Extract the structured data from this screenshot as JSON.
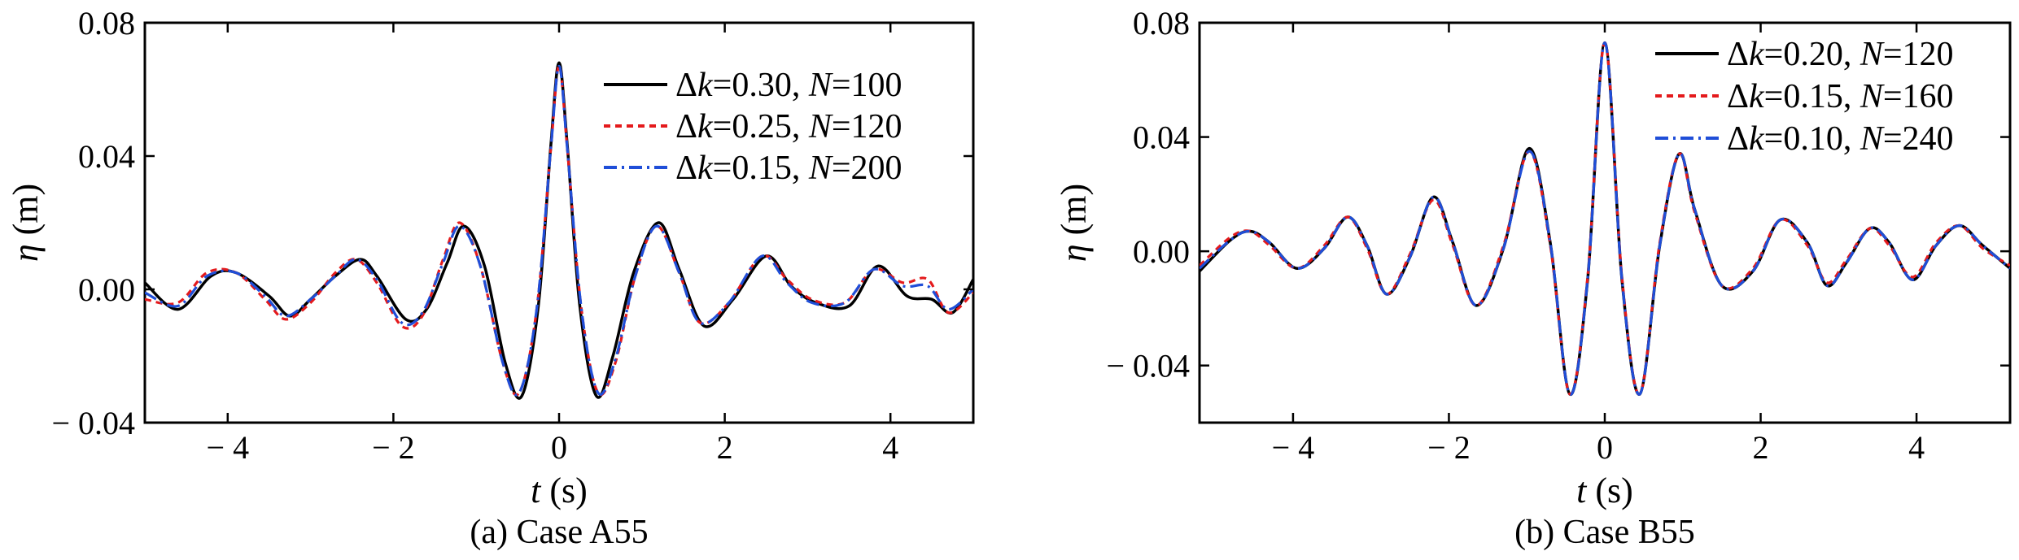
{
  "chart_data": [
    {
      "type": "line",
      "caption": "(a) Case A55",
      "xlabel_var": "t",
      "xlabel_unit": " (s)",
      "ylabel_var": "η",
      "ylabel_unit": " (m)",
      "xlim": [
        -5,
        5
      ],
      "ylim": [
        -0.04,
        0.08
      ],
      "xticks": [
        -4,
        -2,
        0,
        2,
        4
      ],
      "xtick_labels": [
        "− 4",
        "− 2",
        "0",
        "2",
        "4"
      ],
      "yticks": [
        -0.04,
        0.0,
        0.04,
        0.08
      ],
      "ytick_labels": [
        "− 0.04",
        "0.00",
        "0.04",
        "0.08"
      ],
      "grid": false,
      "legend_position": "top-right",
      "series": [
        {
          "name_parts": [
            "Δ",
            "k",
            "=0.30, ",
            "N",
            "=100"
          ],
          "color": "#000000",
          "dash": "solid",
          "x": [
            -5.0,
            -4.6,
            -4.2,
            -3.9,
            -3.5,
            -3.25,
            -3.0,
            -2.7,
            -2.4,
            -2.2,
            -1.85,
            -1.6,
            -1.35,
            -1.15,
            -0.9,
            -0.65,
            -0.45,
            -0.25,
            -0.1,
            0.0,
            0.1,
            0.25,
            0.45,
            0.65,
            0.9,
            1.2,
            1.45,
            1.75,
            2.1,
            2.5,
            2.8,
            3.1,
            3.5,
            3.85,
            4.2,
            4.5,
            4.75,
            5.0
          ],
          "y": [
            0.002,
            -0.006,
            0.004,
            0.005,
            -0.002,
            -0.008,
            -0.003,
            0.004,
            0.009,
            0.004,
            -0.009,
            -0.006,
            0.008,
            0.019,
            0.007,
            -0.022,
            -0.032,
            -0.005,
            0.043,
            0.068,
            0.043,
            -0.005,
            -0.032,
            -0.02,
            0.005,
            0.02,
            0.006,
            -0.011,
            -0.003,
            0.01,
            0.001,
            -0.004,
            -0.005,
            0.007,
            -0.002,
            -0.003,
            -0.007,
            0.003
          ]
        },
        {
          "name_parts": [
            "Δ",
            "k",
            "=0.25, ",
            "N",
            "=120"
          ],
          "color": "#e41a1c",
          "dash": "8,6",
          "x": [
            -5.0,
            -4.6,
            -4.25,
            -3.9,
            -3.55,
            -3.3,
            -3.0,
            -2.7,
            -2.45,
            -2.2,
            -1.9,
            -1.65,
            -1.4,
            -1.2,
            -0.95,
            -0.68,
            -0.48,
            -0.27,
            -0.1,
            0.0,
            0.1,
            0.27,
            0.47,
            0.68,
            0.92,
            1.18,
            1.45,
            1.7,
            2.05,
            2.45,
            2.75,
            3.05,
            3.45,
            3.8,
            4.15,
            4.45,
            4.7,
            5.0
          ],
          "y": [
            -0.003,
            -0.004,
            0.005,
            0.005,
            -0.003,
            -0.009,
            -0.004,
            0.005,
            0.009,
            0.002,
            -0.011,
            -0.008,
            0.009,
            0.02,
            0.007,
            -0.022,
            -0.031,
            -0.006,
            0.042,
            0.067,
            0.042,
            -0.006,
            -0.031,
            -0.022,
            0.004,
            0.019,
            0.005,
            -0.01,
            -0.004,
            0.01,
            0.003,
            -0.003,
            -0.004,
            0.006,
            0.002,
            0.003,
            -0.007,
            -0.001
          ]
        },
        {
          "name_parts": [
            "Δ",
            "k",
            "=0.15, ",
            "N",
            "=200"
          ],
          "color": "#1f4ed8",
          "dash": "16,6,3,6",
          "x": [
            -5.0,
            -4.6,
            -4.25,
            -3.9,
            -3.55,
            -3.3,
            -3.0,
            -2.7,
            -2.45,
            -2.2,
            -1.9,
            -1.65,
            -1.4,
            -1.2,
            -0.95,
            -0.68,
            -0.48,
            -0.27,
            -0.1,
            0.0,
            0.1,
            0.27,
            0.47,
            0.68,
            0.92,
            1.18,
            1.45,
            1.7,
            2.05,
            2.45,
            2.75,
            3.05,
            3.45,
            3.8,
            4.15,
            4.45,
            4.7,
            5.0
          ],
          "y": [
            -0.001,
            -0.005,
            0.004,
            0.005,
            -0.002,
            -0.008,
            -0.003,
            0.004,
            0.009,
            0.003,
            -0.01,
            -0.007,
            0.008,
            0.019,
            0.007,
            -0.022,
            -0.031,
            -0.006,
            0.042,
            0.067,
            0.042,
            -0.006,
            -0.031,
            -0.021,
            0.004,
            0.019,
            0.005,
            -0.01,
            -0.004,
            0.01,
            0.002,
            -0.004,
            -0.004,
            0.006,
            0.001,
            0.001,
            -0.006,
            0.0
          ]
        }
      ]
    },
    {
      "type": "line",
      "caption": "(b) Case B55",
      "xlabel_var": "t",
      "xlabel_unit": " (s)",
      "ylabel_var": "η",
      "ylabel_unit": " (m)",
      "xlim": [
        -5.2,
        5.2
      ],
      "ylim": [
        -0.06,
        0.08
      ],
      "xticks": [
        -4,
        -2,
        0,
        2,
        4
      ],
      "xtick_labels": [
        "− 4",
        "− 2",
        "0",
        "2",
        "4"
      ],
      "yticks": [
        -0.04,
        0.0,
        0.04,
        0.08
      ],
      "ytick_labels": [
        "− 0.04",
        "0.00",
        "0.04",
        "0.08"
      ],
      "grid": false,
      "legend_position": "top-right",
      "series": [
        {
          "name_parts": [
            "Δ",
            "k",
            "=0.20, ",
            "N",
            "=120"
          ],
          "color": "#000000",
          "dash": "solid",
          "x": [
            -5.2,
            -4.8,
            -4.55,
            -4.3,
            -3.95,
            -3.6,
            -3.3,
            -3.05,
            -2.8,
            -2.5,
            -2.2,
            -1.95,
            -1.65,
            -1.3,
            -0.97,
            -0.7,
            -0.45,
            -0.22,
            0.0,
            0.22,
            0.45,
            0.7,
            0.95,
            1.15,
            1.5,
            1.9,
            2.25,
            2.6,
            2.85,
            3.1,
            3.4,
            3.65,
            3.95,
            4.25,
            4.55,
            4.85,
            5.2
          ],
          "y": [
            -0.007,
            0.004,
            0.007,
            0.003,
            -0.006,
            0.001,
            0.012,
            0.002,
            -0.015,
            -0.002,
            0.019,
            0.003,
            -0.019,
            0.001,
            0.036,
            0.003,
            -0.05,
            -0.01,
            0.073,
            -0.01,
            -0.05,
            0.001,
            0.034,
            0.015,
            -0.012,
            -0.007,
            0.011,
            0.003,
            -0.012,
            -0.004,
            0.008,
            0.003,
            -0.01,
            0.002,
            0.009,
            0.002,
            -0.006
          ]
        },
        {
          "name_parts": [
            "Δ",
            "k",
            "=0.15, ",
            "N",
            "=160"
          ],
          "color": "#e41a1c",
          "dash": "8,6",
          "x": [
            -5.2,
            -4.8,
            -4.55,
            -4.3,
            -3.95,
            -3.6,
            -3.3,
            -3.05,
            -2.8,
            -2.5,
            -2.2,
            -1.95,
            -1.65,
            -1.3,
            -0.97,
            -0.7,
            -0.45,
            -0.22,
            0.0,
            0.22,
            0.45,
            0.7,
            0.95,
            1.15,
            1.5,
            1.9,
            2.25,
            2.6,
            2.85,
            3.1,
            3.4,
            3.65,
            3.95,
            4.25,
            4.55,
            4.85,
            5.2
          ],
          "y": [
            -0.005,
            0.005,
            0.007,
            0.002,
            -0.006,
            0.002,
            0.012,
            0.001,
            -0.015,
            -0.001,
            0.018,
            0.002,
            -0.019,
            0.002,
            0.035,
            0.002,
            -0.05,
            -0.009,
            0.073,
            -0.009,
            -0.05,
            0.002,
            0.034,
            0.014,
            -0.012,
            -0.006,
            0.011,
            0.002,
            -0.011,
            -0.003,
            0.008,
            0.002,
            -0.009,
            0.003,
            0.009,
            0.001,
            -0.005
          ]
        },
        {
          "name_parts": [
            "Δ",
            "k",
            "=0.10, ",
            "N",
            "=240"
          ],
          "color": "#1f4ed8",
          "dash": "16,6,3,6",
          "x": [
            -5.2,
            -4.8,
            -4.55,
            -4.3,
            -3.95,
            -3.6,
            -3.3,
            -3.05,
            -2.8,
            -2.5,
            -2.2,
            -1.95,
            -1.65,
            -1.3,
            -0.97,
            -0.7,
            -0.45,
            -0.22,
            0.0,
            0.22,
            0.45,
            0.7,
            0.95,
            1.15,
            1.5,
            1.9,
            2.25,
            2.6,
            2.85,
            3.1,
            3.4,
            3.65,
            3.95,
            4.25,
            4.55,
            4.85,
            5.2
          ],
          "y": [
            -0.006,
            0.004,
            0.007,
            0.003,
            -0.006,
            0.001,
            0.012,
            0.002,
            -0.015,
            -0.002,
            0.019,
            0.003,
            -0.019,
            0.001,
            0.035,
            0.003,
            -0.05,
            -0.01,
            0.073,
            -0.01,
            -0.05,
            0.001,
            0.034,
            0.015,
            -0.012,
            -0.007,
            0.011,
            0.003,
            -0.012,
            -0.004,
            0.008,
            0.003,
            -0.01,
            0.002,
            0.009,
            0.002,
            -0.006
          ]
        }
      ]
    }
  ]
}
